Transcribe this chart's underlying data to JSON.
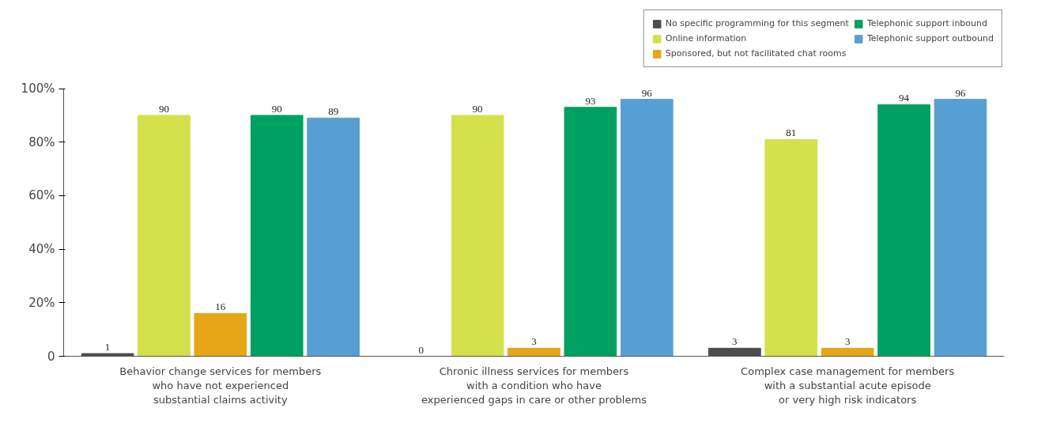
{
  "chart_data": {
    "type": "bar",
    "categories": [
      "Behavior change services for members\nwho have not experienced\nsubstantial claims activity",
      "Chronic illness services for members\nwith a condition who have\nexperienced gaps in care or other problems",
      "Complex case management for members\nwith a substantial acute episode\nor very high risk indicators"
    ],
    "series": [
      {
        "name": "No specific programming for this segment",
        "color": "#4d4d4f",
        "values": [
          1,
          0,
          3
        ]
      },
      {
        "name": "Online information",
        "color": "#d5e04d",
        "values": [
          90,
          90,
          81
        ]
      },
      {
        "name": "Sponsored, but not facilitated chat rooms",
        "color": "#e5a618",
        "values": [
          16,
          3,
          3
        ]
      },
      {
        "name": "Telephonic support inbound",
        "color": "#00a062",
        "values": [
          90,
          93,
          94
        ]
      },
      {
        "name": "Telephonic support outbound",
        "color": "#579fd3",
        "values": [
          89,
          96,
          96
        ]
      }
    ],
    "ylim": [
      0,
      100
    ],
    "yticks": [
      {
        "value": 0,
        "label": "0"
      },
      {
        "value": 20,
        "label": "20%"
      },
      {
        "value": 40,
        "label": "40%"
      },
      {
        "value": 60,
        "label": "60%"
      },
      {
        "value": 80,
        "label": "80%"
      },
      {
        "value": 100,
        "label": "100%"
      }
    ],
    "data_labels": true,
    "grid": false,
    "legend": "top right"
  }
}
